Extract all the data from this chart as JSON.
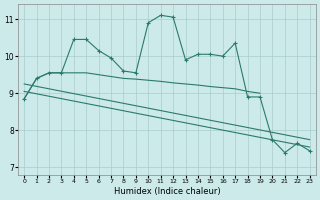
{
  "bg_color": "#cceaea",
  "grid_color": "#aacccc",
  "line_color": "#2a7a6a",
  "xlabel": "Humidex (Indice chaleur)",
  "xlim": [
    -0.5,
    23.5
  ],
  "ylim": [
    6.8,
    11.4
  ],
  "yticks": [
    7,
    8,
    9,
    10,
    11
  ],
  "xticks": [
    0,
    1,
    2,
    3,
    4,
    5,
    6,
    7,
    8,
    9,
    10,
    11,
    12,
    13,
    14,
    15,
    16,
    17,
    18,
    19,
    20,
    21,
    22,
    23
  ],
  "line1_x": [
    0,
    1,
    2,
    3,
    4,
    5,
    6,
    7,
    8,
    9,
    10,
    11,
    12,
    13,
    14,
    15,
    16,
    17,
    18,
    19,
    20,
    21,
    22,
    23
  ],
  "line1_y": [
    8.85,
    9.4,
    9.55,
    9.55,
    10.45,
    10.45,
    10.15,
    9.95,
    9.6,
    9.55,
    10.9,
    11.1,
    11.05,
    9.9,
    10.05,
    10.05,
    10.0,
    10.35,
    8.9,
    8.9,
    7.75,
    7.4,
    7.65,
    7.45
  ],
  "line2_x": [
    0,
    1,
    2,
    3,
    4,
    5,
    6,
    7,
    8,
    9,
    10,
    11,
    12,
    13,
    14,
    15,
    16,
    17,
    18,
    19
  ],
  "line2_y": [
    8.85,
    9.4,
    9.55,
    9.55,
    9.55,
    9.55,
    9.5,
    9.45,
    9.4,
    9.38,
    9.35,
    9.32,
    9.28,
    9.25,
    9.22,
    9.18,
    9.15,
    9.12,
    9.05,
    9.0
  ],
  "line3_x": [
    0,
    23
  ],
  "line3_y": [
    9.25,
    7.75
  ],
  "line4_x": [
    0,
    23
  ],
  "line4_y": [
    9.05,
    7.55
  ]
}
